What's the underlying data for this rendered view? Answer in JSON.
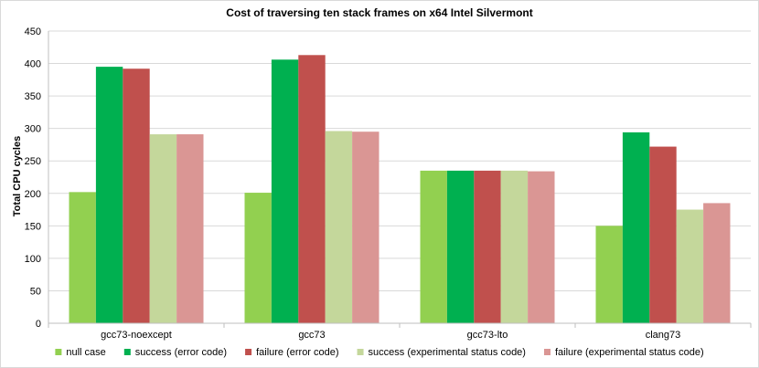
{
  "chart_data": {
    "type": "bar",
    "title": "Cost of traversing ten stack frames on x64 Intel Silvermont",
    "xlabel": "",
    "ylabel": "Total CPU cycles",
    "ylim": [
      0,
      450
    ],
    "yticks": [
      0,
      50,
      100,
      150,
      200,
      250,
      300,
      350,
      400,
      450
    ],
    "grid": true,
    "legend_position": "bottom",
    "categories": [
      "gcc73-noexcept",
      "gcc73",
      "gcc73-lto",
      "clang73"
    ],
    "series": [
      {
        "name": "null case",
        "color": "#92d050",
        "values": [
          202,
          201,
          235,
          150
        ]
      },
      {
        "name": "success (error code)",
        "color": "#00b050",
        "values": [
          395,
          406,
          235,
          294
        ]
      },
      {
        "name": "failure (error code)",
        "color": "#c0504d",
        "values": [
          392,
          413,
          235,
          272
        ]
      },
      {
        "name": "success (experimental status code)",
        "color": "#c4d79b",
        "values": [
          291,
          296,
          235,
          175
        ]
      },
      {
        "name": "failure (experimental status code)",
        "color": "#da9694",
        "values": [
          291,
          295,
          234,
          185
        ]
      }
    ]
  }
}
